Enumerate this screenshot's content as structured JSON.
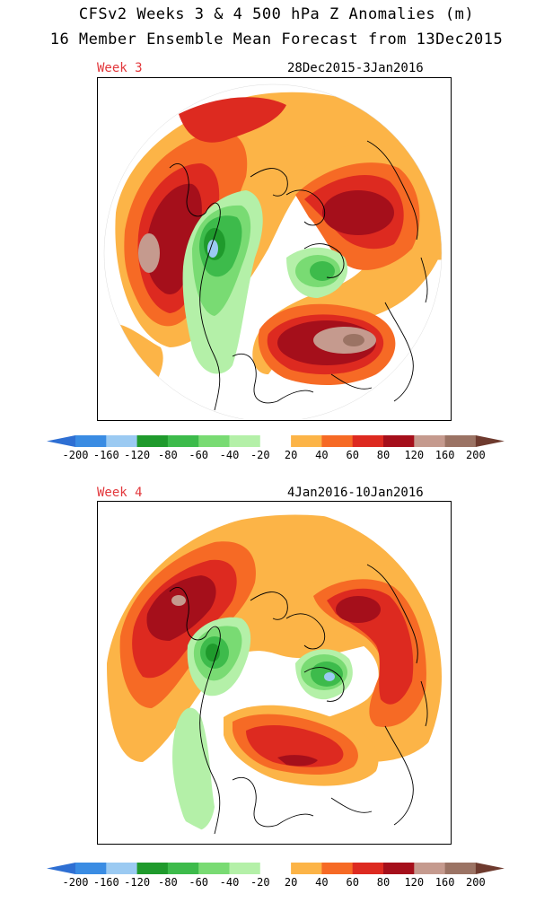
{
  "header": {
    "line1": "CFSv2 Weeks 3 & 4 500 hPa Z Anomalies (m)",
    "line2": "16 Member Ensemble Mean Forecast from 13Dec2015"
  },
  "panels": [
    {
      "week_label": "Week 3",
      "date_range": "28Dec2015-3Jan2016"
    },
    {
      "week_label": "Week 4",
      "date_range": "4Jan2016-10Jan2016"
    }
  ],
  "colorbar": {
    "unit": "m",
    "tick_labels": [
      "-200",
      "-160",
      "-120",
      "-80",
      "-60",
      "-40",
      "-20",
      "20",
      "40",
      "60",
      "80",
      "120",
      "160",
      "200"
    ],
    "bins": [
      {
        "color": "#3a8ce3"
      },
      {
        "color": "#9bcaf2"
      },
      {
        "color": "#1f9a2c"
      },
      {
        "color": "#3dbb4b"
      },
      {
        "color": "#79db73"
      },
      {
        "color": "#b4f0a8"
      },
      {
        "color": "#ffffff"
      },
      {
        "color": "#fcb447"
      },
      {
        "color": "#f66a25"
      },
      {
        "color": "#dd2a20"
      },
      {
        "color": "#a50f1b"
      },
      {
        "color": "#c59a8e"
      },
      {
        "color": "#9b7364"
      }
    ],
    "low_end_color": "#2e6fd3",
    "high_end_color": "#6e3a2e"
  }
}
